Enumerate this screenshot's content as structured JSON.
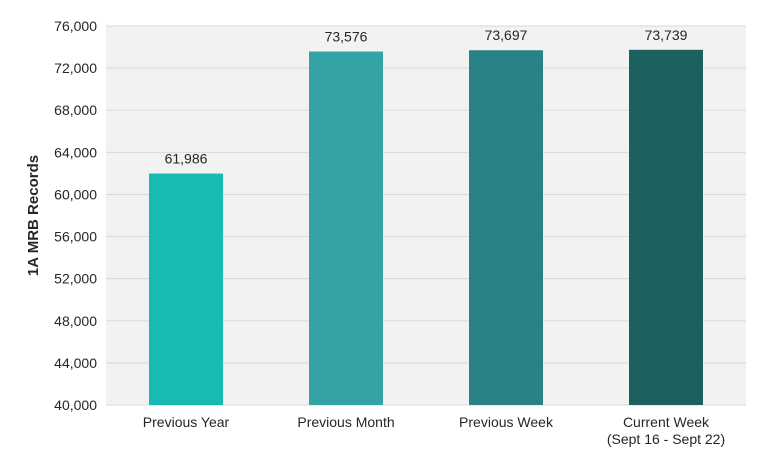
{
  "chart_data": {
    "type": "bar",
    "title": "",
    "xlabel": "",
    "ylabel": "1A MRB Records",
    "ylim": [
      40000,
      76000
    ],
    "yticks": [
      40000,
      44000,
      48000,
      52000,
      56000,
      60000,
      64000,
      68000,
      72000,
      76000
    ],
    "ytick_labels": [
      "40,000",
      "44,000",
      "48,000",
      "52,000",
      "56,000",
      "60,000",
      "64,000",
      "68,000",
      "72,000",
      "76,000"
    ],
    "grid": true,
    "legend": "none",
    "categories": [
      [
        "Previous Year"
      ],
      [
        "Previous Month"
      ],
      [
        "Previous Week"
      ],
      [
        "Current Week",
        "(Sept 16 - Sept 22)"
      ]
    ],
    "values": [
      61986,
      73576,
      73697,
      73739
    ],
    "value_labels": [
      "61,986",
      "73,576",
      "73,697",
      "73,739"
    ],
    "colors": [
      "#17bbb1",
      "#33a3a5",
      "#288286",
      "#1d615f"
    ],
    "plot_background": "#f2f2f2",
    "grid_color": "#d9d9d9"
  }
}
